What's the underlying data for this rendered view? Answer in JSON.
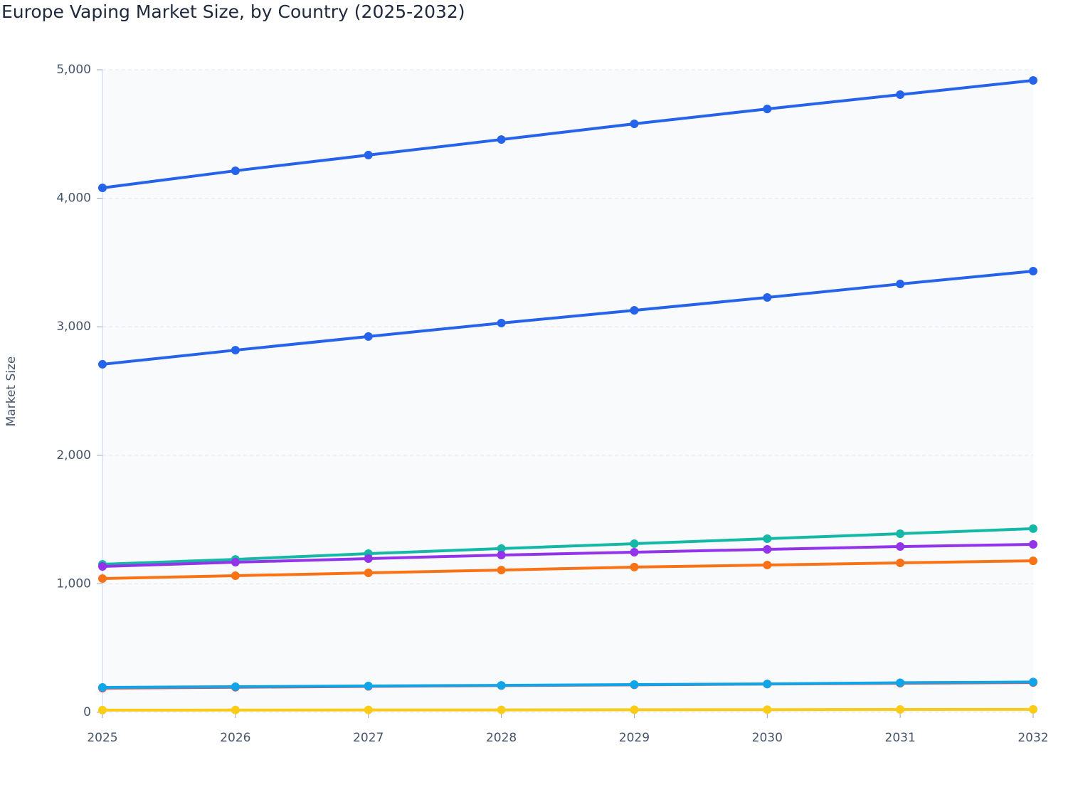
{
  "chart_data": {
    "type": "line",
    "title": "Europe Vaping Market Size, by Country (2025-2032)",
    "y_label": "Market Size",
    "categories": [
      "2025",
      "2026",
      "2027",
      "2028",
      "2029",
      "2030",
      "2031",
      "2032"
    ],
    "ylim": [
      0,
      5000
    ],
    "yticks": [
      0,
      {
        "value": 1000,
        "label": "1,000"
      },
      {
        "value": 2000,
        "label": "2,000"
      },
      {
        "value": 3000,
        "label": "3,000"
      },
      {
        "value": 4000,
        "label": "4,000"
      },
      {
        "value": 5000,
        "label": "5,000"
      }
    ],
    "grid": true,
    "series": [
      {
        "color": "#2563eb",
        "values": [
          4081,
          4214,
          4336,
          4457,
          4579,
          4695,
          4806,
          4917
        ]
      },
      {
        "color": "#2563eb",
        "values": [
          2708,
          2818,
          2924,
          3029,
          3128,
          3228,
          3333,
          3433
        ]
      },
      {
        "color": "#14b8a6",
        "values": [
          1152,
          1190,
          1235,
          1274,
          1312,
          1351,
          1390,
          1429
        ]
      },
      {
        "color": "#9333ea",
        "values": [
          1135,
          1168,
          1196,
          1224,
          1246,
          1268,
          1290,
          1307
        ]
      },
      {
        "color": "#f97316",
        "values": [
          1041,
          1063,
          1085,
          1107,
          1130,
          1146,
          1163,
          1179
        ]
      },
      {
        "color": "#ef4444",
        "values": [
          188,
          195,
          202,
          208,
          214,
          220,
          226,
          232
        ]
      },
      {
        "color": "#0ea5e9",
        "values": [
          194,
          199,
          205,
          210,
          216,
          221,
          230,
          236
        ]
      },
      {
        "color": "#facc15",
        "values": [
          17,
          18,
          19,
          19,
          20,
          21,
          22,
          23
        ]
      }
    ]
  }
}
